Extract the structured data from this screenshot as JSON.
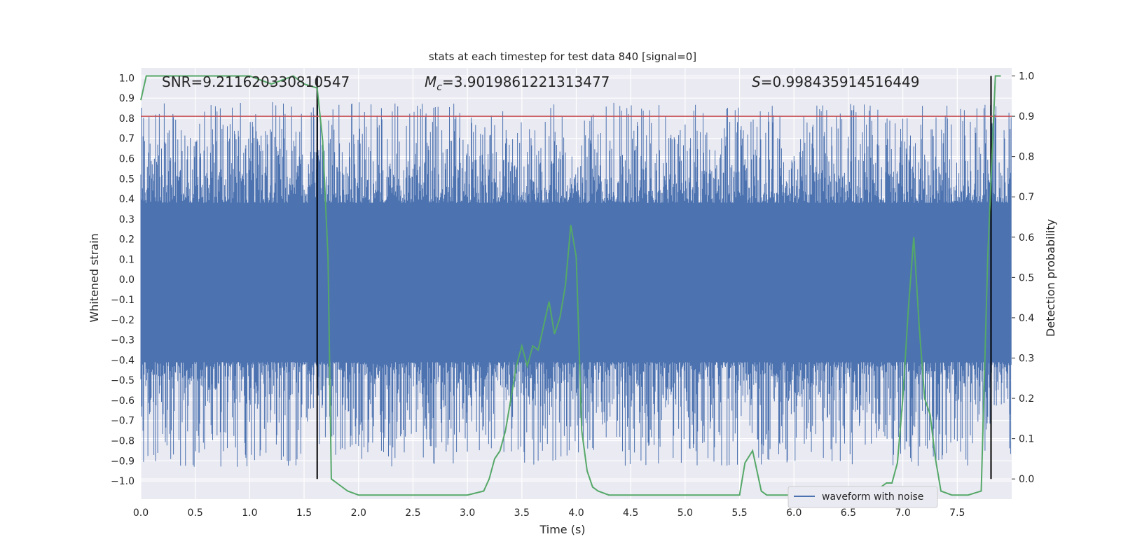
{
  "chart_data": {
    "type": "line",
    "title": "stats at each timestep for test data 840 [signal=0]",
    "xlabel": "Time (s)",
    "ylabel_left": "Whitened strain",
    "ylabel_right": "Detection probability",
    "xlim": [
      0.0,
      8.0
    ],
    "ylim_left": [
      -1.09,
      1.05
    ],
    "ylim_right": [
      -0.05,
      1.02
    ],
    "x_ticks": [
      0.0,
      0.5,
      1.0,
      1.5,
      2.0,
      2.5,
      3.0,
      3.5,
      4.0,
      4.5,
      5.0,
      5.5,
      6.0,
      6.5,
      7.0,
      7.5
    ],
    "x_tick_labels": [
      "0.0",
      "0.5",
      "1.0",
      "1.5",
      "2.0",
      "2.5",
      "3.0",
      "3.5",
      "4.0",
      "4.5",
      "5.0",
      "5.5",
      "6.0",
      "6.5",
      "7.0",
      "7.5"
    ],
    "y_left_ticks": [
      1.0,
      0.9,
      0.8,
      0.7,
      0.6,
      0.5,
      0.4,
      0.3,
      0.2,
      0.1,
      0.0,
      -0.1,
      -0.2,
      -0.3,
      -0.4,
      -0.5,
      -0.6,
      -0.7,
      -0.8,
      -0.9,
      -1.0
    ],
    "y_left_tick_labels": [
      "1.0",
      "0.9",
      "0.8",
      "0.7",
      "0.6",
      "0.5",
      "0.4",
      "0.3",
      "0.2",
      "0.1",
      "0.0",
      "−0.1",
      "−0.2",
      "−0.3",
      "−0.4",
      "−0.5",
      "−0.6",
      "−0.7",
      "−0.8",
      "−0.9",
      "−1.0"
    ],
    "y_right_ticks": [
      1.0,
      0.9,
      0.8,
      0.7,
      0.6,
      0.5,
      0.4,
      0.3,
      0.2,
      0.1,
      0.0
    ],
    "y_right_tick_labels": [
      "1.0",
      "0.9",
      "0.8",
      "0.7",
      "0.6",
      "0.5",
      "0.4",
      "0.3",
      "0.2",
      "0.1",
      "0.0"
    ],
    "annotations": {
      "snr": "SNR=9.211620330810547",
      "mc_symbol": "M",
      "mc_sub": "c",
      "mc_value": "=3.9019861221313477",
      "s_symbol": "S",
      "s_value": "=0.998435914516449"
    },
    "legend": {
      "label": "waveform with noise",
      "placement": "lower-right"
    },
    "waveform": {
      "name": "waveform with noise",
      "color": "#4c72b0",
      "dense_band": [
        -0.41,
        0.38
      ],
      "seed": 840
    },
    "threshold": {
      "value": 0.9,
      "axis": "right",
      "color": "#c44e52"
    },
    "vertical_markers": [
      1.62,
      7.81
    ],
    "probability": {
      "name": "detection probability",
      "color": "#55a868",
      "x": [
        0.0,
        0.05,
        0.1,
        0.2,
        0.3,
        0.4,
        0.5,
        0.6,
        0.7,
        0.8,
        0.9,
        1.0,
        1.1,
        1.2,
        1.3,
        1.4,
        1.5,
        1.62,
        1.67,
        1.72,
        1.75,
        1.8,
        1.9,
        2.0,
        2.2,
        2.4,
        2.6,
        2.8,
        3.0,
        3.15,
        3.2,
        3.25,
        3.3,
        3.35,
        3.4,
        3.45,
        3.5,
        3.55,
        3.6,
        3.65,
        3.7,
        3.75,
        3.8,
        3.85,
        3.9,
        3.95,
        4.0,
        4.05,
        4.1,
        4.15,
        4.2,
        4.3,
        4.5,
        4.8,
        5.0,
        5.3,
        5.5,
        5.55,
        5.62,
        5.7,
        5.75,
        5.9,
        6.1,
        6.3,
        6.5,
        6.7,
        6.8,
        6.85,
        6.9,
        6.95,
        7.0,
        7.05,
        7.1,
        7.15,
        7.2,
        7.25,
        7.3,
        7.35,
        7.45,
        7.6,
        7.72,
        7.78,
        7.85,
        7.9
      ],
      "y": [
        0.94,
        1.0,
        1.0,
        1.0,
        1.0,
        1.0,
        1.0,
        1.0,
        1.0,
        1.0,
        1.0,
        1.0,
        0.99,
        0.98,
        0.99,
        1.0,
        0.98,
        0.97,
        0.84,
        0.55,
        0.0,
        -0.01,
        -0.03,
        -0.04,
        -0.04,
        -0.04,
        -0.04,
        -0.04,
        -0.04,
        -0.03,
        0.0,
        0.05,
        0.07,
        0.12,
        0.2,
        0.28,
        0.33,
        0.28,
        0.33,
        0.32,
        0.38,
        0.44,
        0.36,
        0.4,
        0.48,
        0.63,
        0.55,
        0.12,
        0.02,
        -0.02,
        -0.03,
        -0.04,
        -0.04,
        -0.04,
        -0.04,
        -0.04,
        -0.04,
        0.04,
        0.07,
        -0.03,
        -0.04,
        -0.04,
        -0.04,
        -0.04,
        -0.03,
        -0.03,
        -0.02,
        -0.01,
        -0.01,
        0.04,
        0.2,
        0.42,
        0.6,
        0.38,
        0.2,
        0.16,
        0.05,
        -0.03,
        -0.04,
        -0.04,
        -0.03,
        0.55,
        1.0,
        1.0
      ]
    }
  }
}
